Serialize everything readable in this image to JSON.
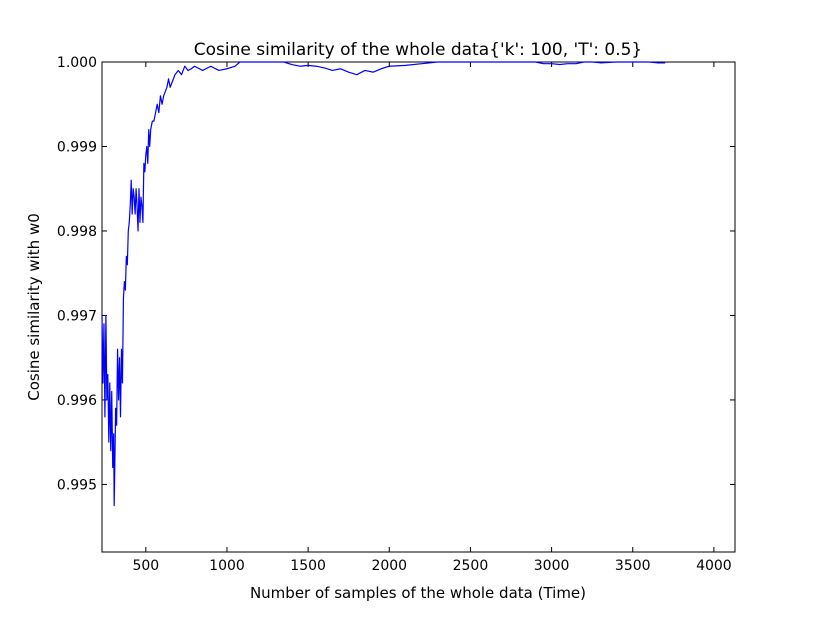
{
  "chart_data": {
    "type": "line",
    "title": "Cosine similarity of the whole data{'k': 100, 'T': 0.5}",
    "xlabel": "Number of samples of the whole data (Time)",
    "ylabel": "Cosine similarity with w0",
    "xlim": [
      230,
      4130
    ],
    "ylim": [
      0.9942,
      1.0
    ],
    "xticks": [
      500,
      1000,
      1500,
      2000,
      2500,
      3000,
      3500,
      4000
    ],
    "xtick_labels": [
      "500",
      "1000",
      "1500",
      "2000",
      "2500",
      "3000",
      "3500",
      "4000"
    ],
    "yticks": [
      0.995,
      0.996,
      0.997,
      0.998,
      0.999,
      1.0
    ],
    "ytick_labels": [
      "0.995",
      "0.996",
      "0.997",
      "0.998",
      "0.999",
      "1.000"
    ],
    "grid": false,
    "line_color": "#0000ff",
    "series": [
      {
        "x": [
          230,
          236,
          242,
          248,
          254,
          260,
          266,
          272,
          278,
          284,
          290,
          296,
          302,
          305,
          308,
          314,
          320,
          326,
          332,
          338,
          344,
          350,
          356,
          362,
          368,
          374,
          380,
          386,
          392,
          398,
          404,
          410,
          416,
          422,
          428,
          434,
          440,
          446,
          452,
          458,
          464,
          470,
          476,
          482,
          488,
          494,
          500,
          506,
          512,
          518,
          524,
          530,
          540,
          550,
          560,
          570,
          580,
          590,
          600,
          610,
          620,
          630,
          640,
          650,
          660,
          670,
          680,
          700,
          720,
          740,
          760,
          780,
          800,
          850,
          900,
          950,
          1000,
          1050,
          1080,
          1100,
          1150,
          1200,
          1250,
          1300,
          1350,
          1400,
          1450,
          1500,
          1550,
          1600,
          1650,
          1700,
          1750,
          1800,
          1850,
          1900,
          1950,
          2000,
          2100,
          2200,
          2300,
          2400,
          2500,
          2600,
          2700,
          2800,
          2900,
          2950,
          3000,
          3050,
          3100,
          3150,
          3200,
          3250,
          3300,
          3400,
          3500,
          3600,
          3650,
          3700
        ],
        "y": [
          0.997,
          0.9962,
          0.9969,
          0.9958,
          0.997,
          0.996,
          0.9963,
          0.9955,
          0.9962,
          0.9954,
          0.9961,
          0.9952,
          0.9956,
          0.99475,
          0.9951,
          0.9959,
          0.9957,
          0.9966,
          0.996,
          0.9965,
          0.9958,
          0.9966,
          0.9962,
          0.9972,
          0.9974,
          0.9973,
          0.9977,
          0.9976,
          0.998,
          0.9981,
          0.9983,
          0.9986,
          0.9982,
          0.9985,
          0.9984,
          0.9982,
          0.9985,
          0.9983,
          0.998,
          0.9985,
          0.9981,
          0.9984,
          0.9983,
          0.9981,
          0.9988,
          0.9987,
          0.9989,
          0.999,
          0.9988,
          0.9992,
          0.999,
          0.9992,
          0.9993,
          0.9993,
          0.9994,
          0.9995,
          0.9994,
          0.9996,
          0.9995,
          0.9996,
          0.99965,
          0.9997,
          0.9998,
          0.9997,
          0.99975,
          0.9998,
          0.99985,
          0.9999,
          0.99985,
          0.99995,
          0.9999,
          0.99992,
          0.99995,
          0.9999,
          0.99995,
          0.9999,
          0.99992,
          0.99995,
          1.0,
          1.0,
          1.0,
          1.0,
          1.0,
          1.0,
          1.0,
          0.99997,
          0.99995,
          0.99996,
          0.99995,
          0.99993,
          0.9999,
          0.99992,
          0.99988,
          0.99985,
          0.9999,
          0.99988,
          0.99992,
          0.99995,
          0.99996,
          0.99998,
          1.0,
          1.0,
          1.0,
          1.0,
          1.0,
          1.0,
          1.0,
          0.99998,
          0.99998,
          0.99997,
          0.99998,
          0.99998,
          1.0,
          1.0,
          0.99999,
          1.0,
          1.0,
          1.0,
          0.99999,
          0.99999
        ]
      }
    ]
  }
}
